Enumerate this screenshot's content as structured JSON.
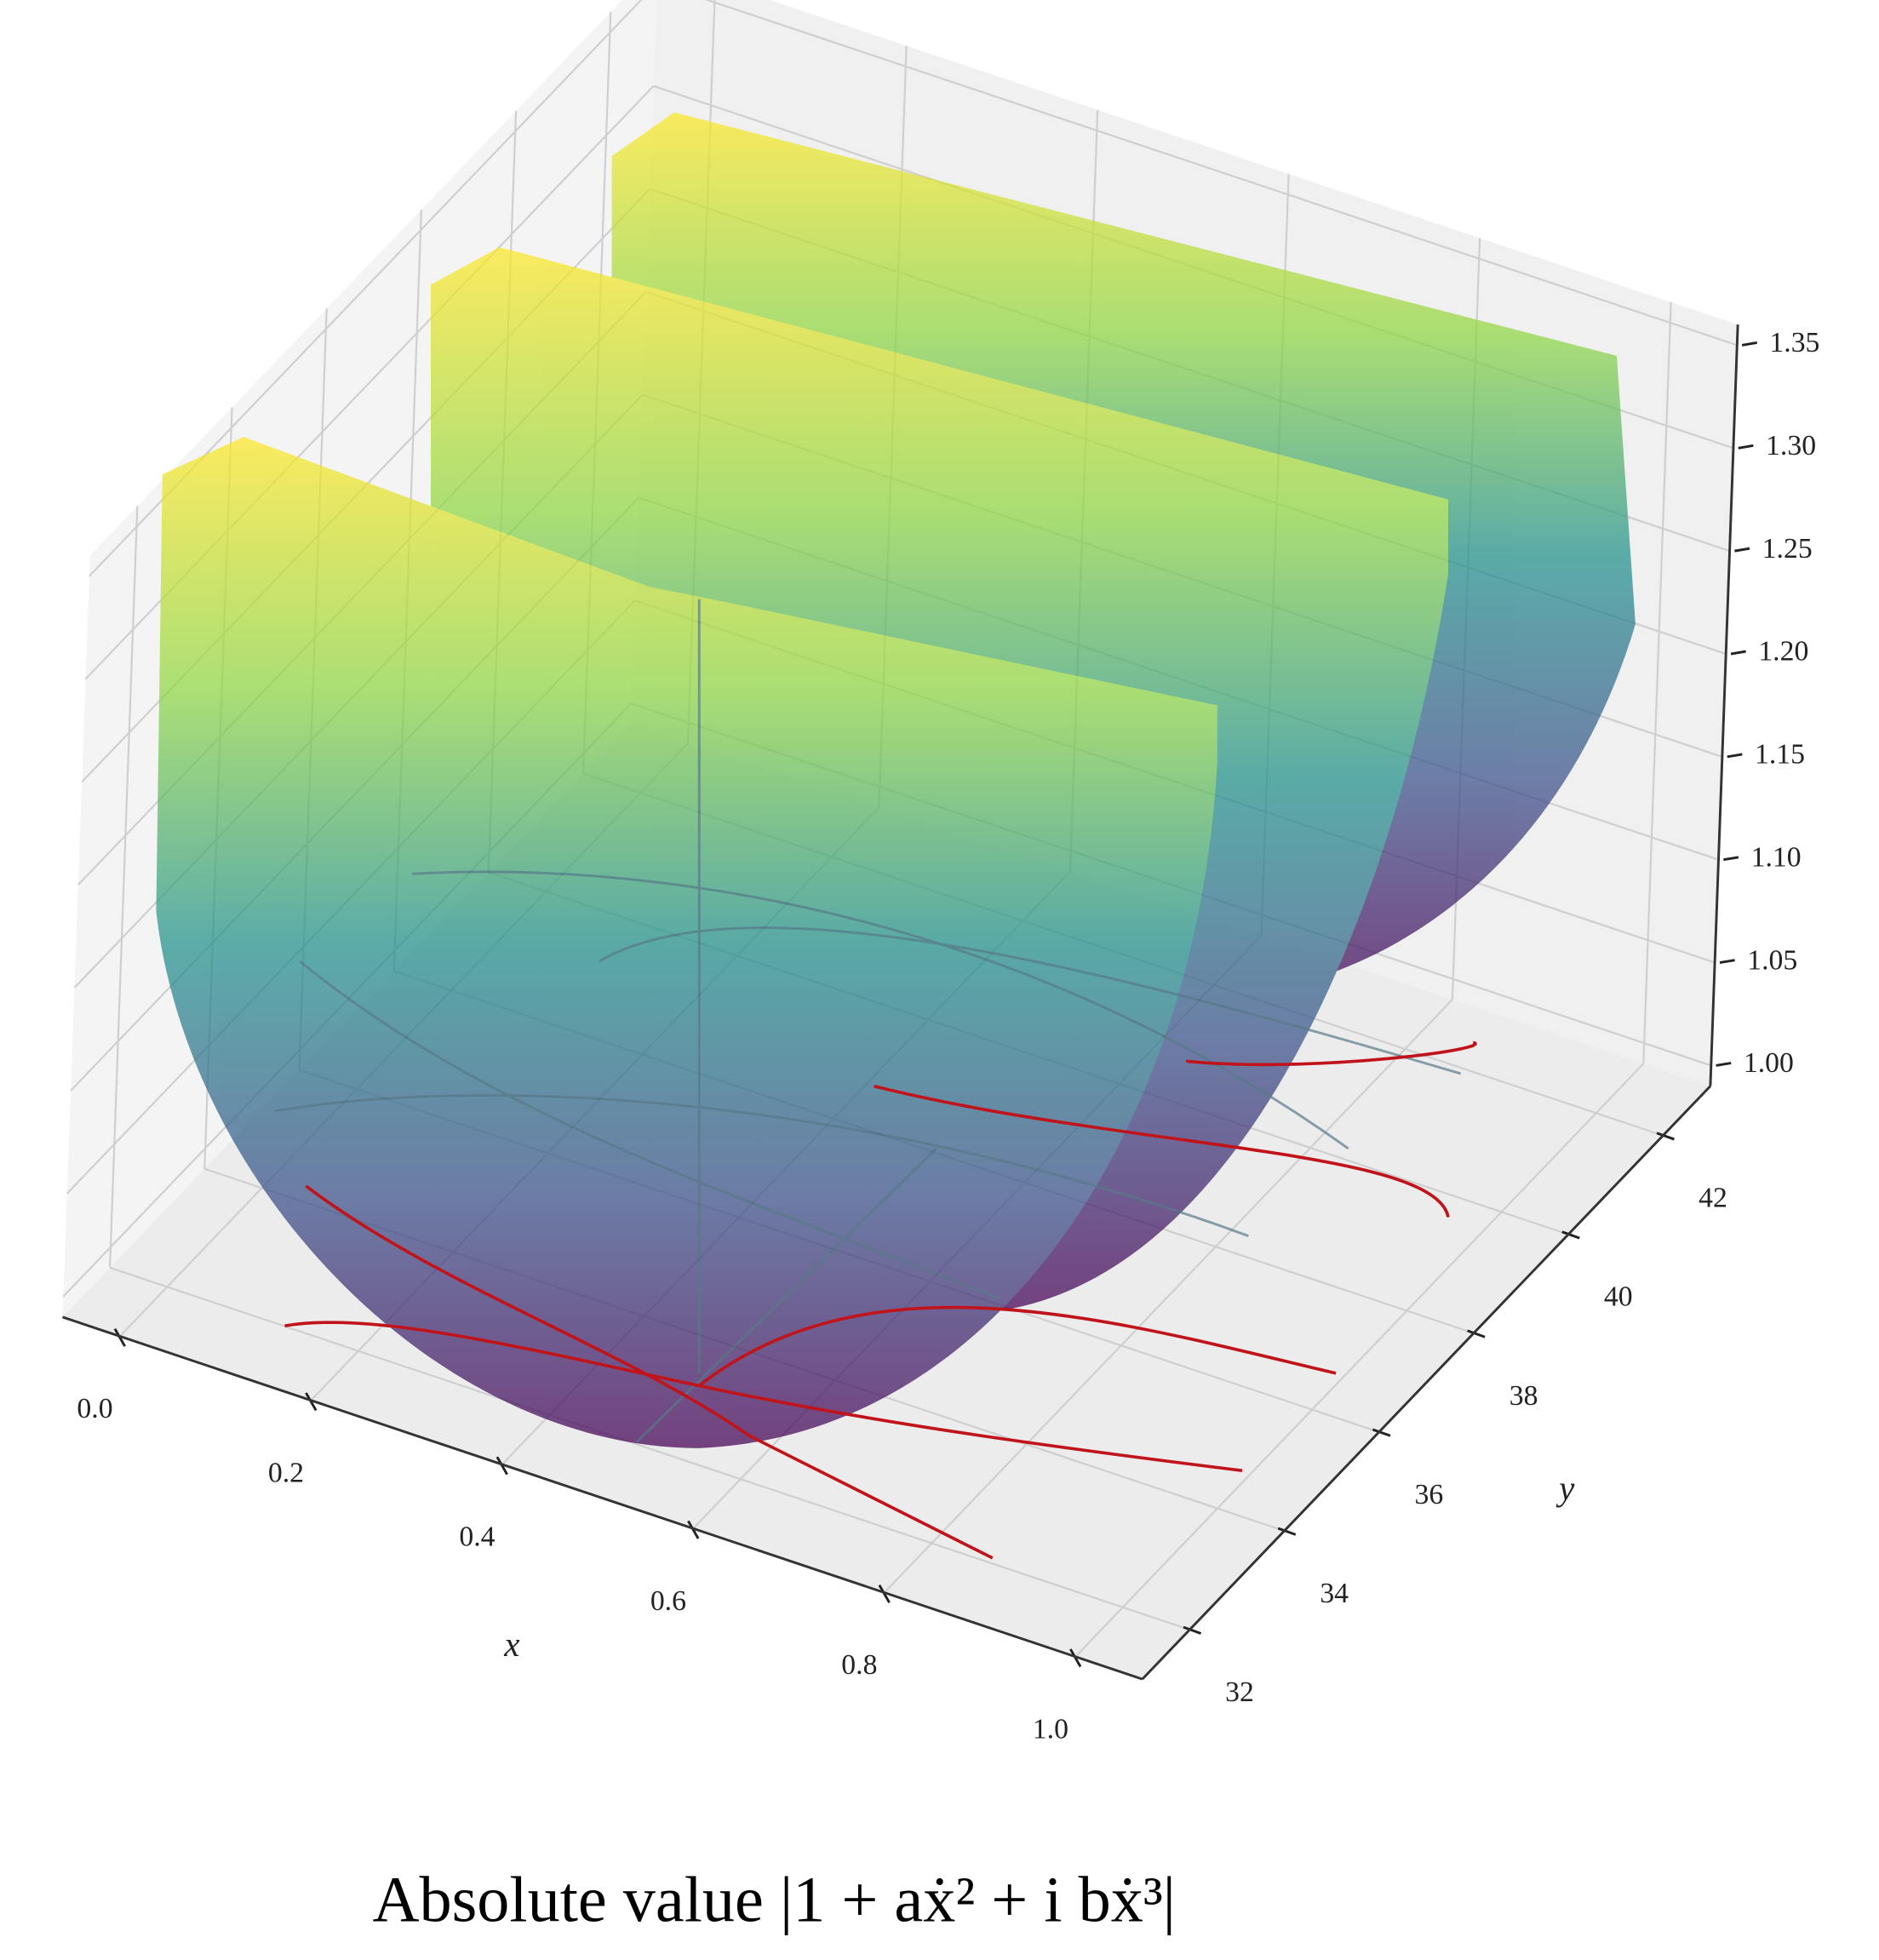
{
  "chart_data": {
    "type": "surface3d",
    "caption": "Absolute value  |1 + aẋ² + i bẋ³|",
    "x_label": "x",
    "y_label": "y",
    "xlim": [
      -0.06,
      1.07
    ],
    "ylim": [
      31,
      43
    ],
    "zlim": [
      0.99,
      1.36
    ],
    "xticks": [
      {
        "value": 0,
        "label": "0.0"
      },
      0.2,
      0.4,
      0.6,
      0.8,
      {
        "value": 1,
        "label": "1.0"
      }
    ],
    "yticks": [
      32,
      34,
      36,
      38,
      40,
      42
    ],
    "zticks": [
      {
        "value": 1,
        "label": "1.00"
      },
      1.05,
      {
        "value": 1.1,
        "label": "1.10"
      },
      1.15,
      {
        "value": 1.2,
        "label": "1.20"
      },
      1.25,
      {
        "value": 1.3,
        "label": "1.30"
      },
      1.35
    ],
    "grid": true
  }
}
